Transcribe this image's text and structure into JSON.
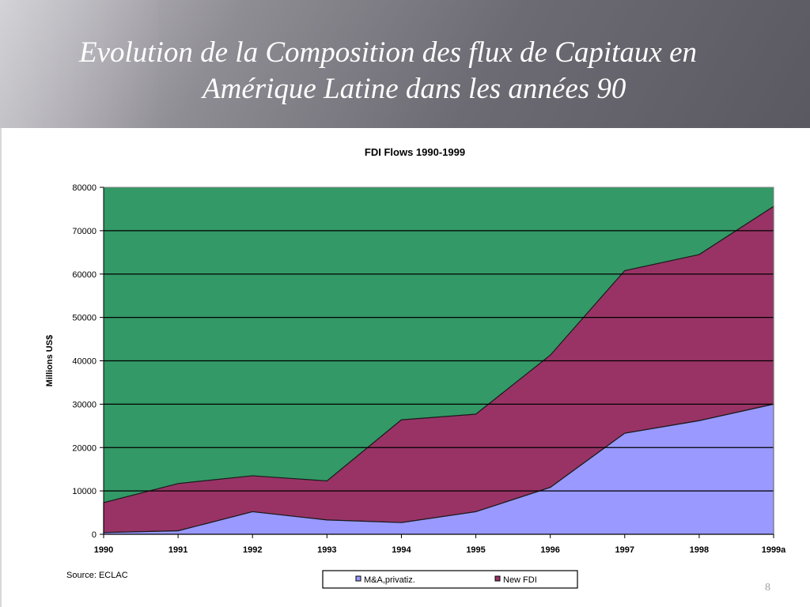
{
  "slide": {
    "title_line1": "Evolution de la Composition des flux de Capitaux en",
    "title_line2": "Amérique Latine dans les années 90",
    "page_number": "8"
  },
  "chart_data": {
    "type": "area",
    "stacked": true,
    "title": "FDI  Flows 1990-1999",
    "ylabel": "Millions US$",
    "xlabel": "",
    "categories": [
      "1990",
      "1991",
      "1992",
      "1993",
      "1994",
      "1995",
      "1996",
      "1997",
      "1998",
      "1999a"
    ],
    "ylim": [
      0,
      80000
    ],
    "yticks": [
      0,
      10000,
      20000,
      30000,
      40000,
      50000,
      60000,
      70000,
      80000
    ],
    "grid": true,
    "series": [
      {
        "name": "M&A,privatiz.",
        "values": [
          400,
          800,
          5200,
          3300,
          2700,
          5200,
          10800,
          23300,
          26200,
          30000
        ],
        "color": "#9999ff"
      },
      {
        "name": "New FDI",
        "values": [
          6900,
          10900,
          8300,
          9000,
          23700,
          22500,
          30500,
          37500,
          38300,
          45600
        ],
        "color": "#993366"
      }
    ],
    "plot_background": "#339966",
    "legend_position": "bottom",
    "source": "Source:  ECLAC"
  }
}
